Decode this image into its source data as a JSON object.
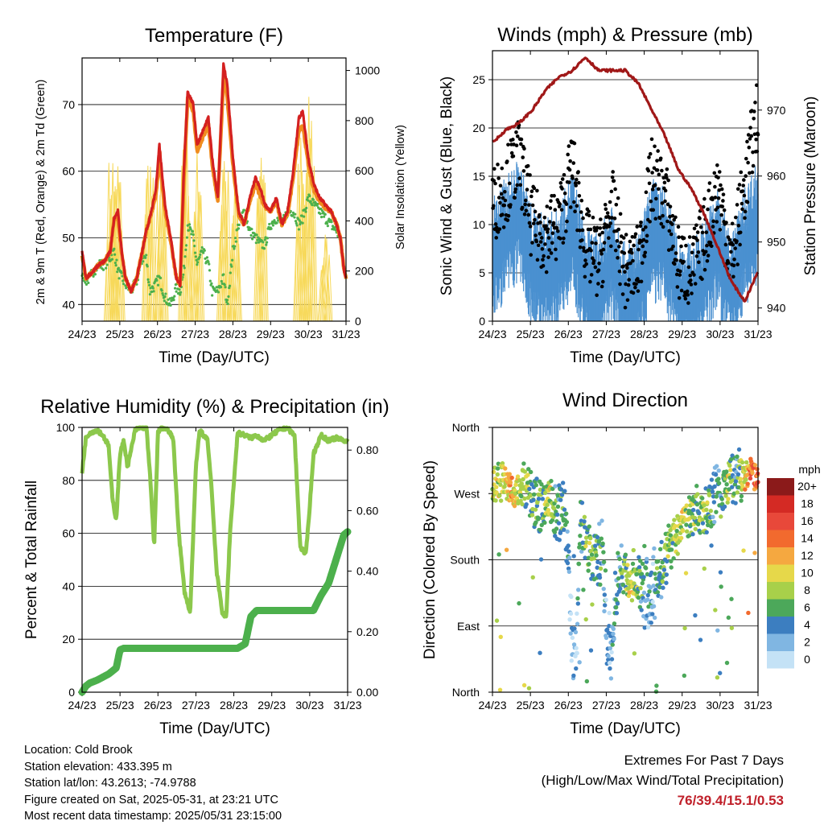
{
  "info": {
    "location": "Location: Cold Brook",
    "elevation": "Station elevation: 433.395 m",
    "latlon": "Station lat/lon: 43.2613; -74.9788",
    "created": "Figure created on Sat, 2025-05-31, at 23:21 UTC",
    "recent": "Most recent data timestamp: 2025/05/31 23:15:00"
  },
  "extremes": {
    "title": "Extremes For Past 7 Days",
    "subtitle": "(High/Low/Max Wind/Total Precipitation)",
    "values": "76/39.4/15.1/0.53"
  },
  "colors": {
    "temp_2m": "#d42020",
    "temp_9m": "#f08c1e",
    "dewpoint": "#4cb04c",
    "solar": "#f7d95a",
    "wind": "#4a90d0",
    "gust": "#000000",
    "pressure": "#a01818",
    "rh": "#8cc84c",
    "precip": "#4cb04c"
  },
  "chart_data": [
    {
      "type": "line",
      "title": "Temperature (F)",
      "xlabel": "Time (Day/UTC)",
      "ylabel": "2m & 9m T (Red, Orange) & 2m Td (Green)",
      "ylabel_right": "Solar Insolation (Yellow)",
      "x_ticks": [
        "24/23",
        "25/23",
        "26/23",
        "27/23",
        "28/23",
        "29/23",
        "30/23",
        "31/23"
      ],
      "ylim": [
        37.5,
        77
      ],
      "yticks": [
        40,
        50,
        60,
        70
      ],
      "ylim_right": [
        0,
        1050
      ],
      "yticks_right": [
        0,
        200,
        400,
        600,
        800,
        1000
      ],
      "grid": true,
      "x": [
        0,
        0.1,
        0.2,
        0.3,
        0.45,
        0.6,
        0.75,
        0.85,
        0.95,
        1.05,
        1.15,
        1.3,
        1.45,
        1.6,
        1.7,
        1.8,
        1.95,
        2.05,
        2.2,
        2.35,
        2.5,
        2.6,
        2.7,
        2.8,
        2.95,
        3.05,
        3.2,
        3.35,
        3.45,
        3.6,
        3.75,
        3.85,
        4.0,
        4.15,
        4.3,
        4.45,
        4.6,
        4.75,
        4.85,
        5.0,
        5.15,
        5.3,
        5.45,
        5.6,
        5.75,
        5.85,
        6.0,
        6.15,
        6.3,
        6.45,
        6.6,
        6.75,
        6.85,
        6.95,
        7.0
      ],
      "series": [
        {
          "name": "2m T",
          "values": [
            48,
            44,
            44.5,
            45,
            46,
            46.5,
            48,
            53,
            54,
            48,
            44,
            42,
            44,
            48,
            51,
            53,
            57,
            64,
            55,
            50,
            44,
            43,
            60,
            72,
            70,
            64,
            66,
            68,
            62,
            56,
            76,
            73,
            62,
            54,
            52,
            56,
            59,
            57,
            55,
            54,
            56,
            52,
            54,
            60,
            68,
            69,
            62,
            58,
            56,
            55,
            54,
            52,
            50,
            45,
            44
          ]
        },
        {
          "name": "9m T",
          "values": [
            47.5,
            44,
            44.5,
            45,
            46,
            46.5,
            48,
            53,
            53,
            47.5,
            44,
            42,
            44,
            48,
            51,
            53,
            56,
            62,
            54,
            49.5,
            44,
            43,
            59,
            71,
            69,
            63,
            65,
            67,
            61,
            55.5,
            74,
            71,
            61,
            53.5,
            52,
            55.5,
            58,
            56,
            54.5,
            54,
            55.5,
            52,
            53.5,
            59,
            66,
            67,
            61,
            57,
            55.5,
            54.5,
            54,
            52,
            50,
            45,
            44
          ]
        },
        {
          "name": "2m Td",
          "values": [
            45,
            43.5,
            44,
            45,
            46,
            46,
            47,
            48,
            45,
            44,
            43,
            42,
            43.5,
            47,
            47,
            42,
            43,
            44,
            41,
            40,
            42.5,
            42,
            45,
            52,
            50,
            46,
            48,
            46,
            42,
            42,
            44,
            40,
            48,
            52,
            54,
            51,
            50,
            49,
            49,
            52,
            53,
            52,
            54,
            54,
            52,
            53,
            56,
            55,
            54,
            53,
            52,
            51,
            50,
            45,
            44
          ]
        },
        {
          "name": "Solar",
          "axis": "right",
          "peaks": [
            [
              0.78,
              780
            ],
            [
              0.95,
              720
            ],
            [
              1.78,
              780
            ],
            [
              2.1,
              700
            ],
            [
              2.75,
              850
            ],
            [
              3.05,
              700
            ],
            [
              3.77,
              820
            ],
            [
              4.05,
              650
            ],
            [
              4.75,
              880
            ],
            [
              5.8,
              780
            ],
            [
              6.05,
              1000
            ],
            [
              6.45,
              380
            ]
          ]
        }
      ]
    },
    {
      "type": "scatter",
      "title": "Winds (mph) & Pressure (mb)",
      "xlabel": "Time (Day/UTC)",
      "ylabel": "Sonic Wind & Gust (Blue, Black)",
      "ylabel_right": "Station Pressure (Maroon)",
      "x_ticks": [
        "24/23",
        "25/23",
        "26/23",
        "27/23",
        "28/23",
        "29/23",
        "30/23",
        "31/23"
      ],
      "ylim": [
        0,
        28
      ],
      "yticks": [
        0,
        5,
        10,
        15,
        20,
        25
      ],
      "ylim_right": [
        938,
        979
      ],
      "yticks_right": [
        940,
        950,
        960,
        970
      ],
      "grid": true,
      "x": [
        0,
        0.35,
        0.7,
        1.05,
        1.4,
        1.75,
        2.1,
        2.45,
        2.8,
        3.15,
        3.5,
        3.85,
        4.2,
        4.55,
        4.9,
        5.25,
        5.6,
        5.95,
        6.3,
        6.65,
        7.0
      ],
      "series": [
        {
          "name": "Wind",
          "values": [
            8,
            10,
            12,
            7,
            6,
            7,
            11,
            5,
            4,
            8,
            3,
            4,
            10,
            9,
            4,
            3,
            6,
            9,
            4,
            9,
            12
          ]
        },
        {
          "name": "Gust",
          "values": [
            12,
            14,
            17,
            10,
            9,
            10,
            16,
            8,
            6,
            12,
            5,
            6,
            15,
            13,
            6,
            5,
            9,
            14,
            6,
            14,
            22
          ]
        },
        {
          "name": "Pressure",
          "axis": "right",
          "values": [
            965,
            967,
            968,
            970,
            973,
            975,
            976,
            978,
            976,
            976,
            976,
            974,
            970,
            966,
            961,
            958,
            954,
            949,
            944,
            941,
            945.5
          ]
        }
      ]
    },
    {
      "type": "line",
      "title": "Relative Humidity (%) & Precipitation (in)",
      "xlabel": "Time (Day/UTC)",
      "ylabel": "Percent & Total Rainfall",
      "x_ticks": [
        "24/23",
        "25/23",
        "26/23",
        "27/23",
        "28/23",
        "29/23",
        "30/23",
        "31/23"
      ],
      "ylim": [
        0,
        100
      ],
      "yticks": [
        0,
        20,
        40,
        60,
        80,
        100
      ],
      "ylim_right": [
        0,
        0.875
      ],
      "yticks_right": [
        0.0,
        0.2,
        0.4,
        0.6,
        0.8
      ],
      "yticklabels_right": [
        "0.00",
        "0.20",
        "0.40",
        "0.60",
        "0.80"
      ],
      "grid": true,
      "x": [
        0,
        0.1,
        0.2,
        0.4,
        0.55,
        0.7,
        0.8,
        0.9,
        1.0,
        1.1,
        1.2,
        1.3,
        1.4,
        1.55,
        1.7,
        1.8,
        1.9,
        2.0,
        2.1,
        2.25,
        2.4,
        2.55,
        2.7,
        2.85,
        3.0,
        3.1,
        3.2,
        3.3,
        3.4,
        3.55,
        3.7,
        3.8,
        3.9,
        4.1,
        4.3,
        4.45,
        4.6,
        4.8,
        5.0,
        5.2,
        5.4,
        5.6,
        5.75,
        5.9,
        6.0,
        6.1,
        6.3,
        6.5,
        6.7,
        6.9,
        7.0
      ],
      "series": [
        {
          "name": "RH",
          "values": [
            83,
            96,
            98,
            99,
            97,
            93,
            73,
            65,
            90,
            95,
            85,
            92,
            99,
            100,
            100,
            80,
            55,
            98,
            100,
            99,
            96,
            60,
            38,
            30,
            85,
            99,
            97,
            96,
            80,
            45,
            30,
            28,
            60,
            98,
            97,
            96,
            97,
            95,
            97,
            99,
            100,
            97,
            55,
            52,
            70,
            90,
            97,
            95,
            96,
            95,
            95
          ]
        },
        {
          "name": "Precipitation",
          "axis": "right",
          "values": [
            0.0,
            0.02,
            0.03,
            0.04,
            0.05,
            0.06,
            0.07,
            0.08,
            0.14,
            0.145,
            0.145,
            0.145,
            0.145,
            0.145,
            0.145,
            0.145,
            0.145,
            0.145,
            0.145,
            0.145,
            0.145,
            0.145,
            0.145,
            0.145,
            0.145,
            0.145,
            0.145,
            0.145,
            0.145,
            0.145,
            0.145,
            0.145,
            0.145,
            0.145,
            0.16,
            0.25,
            0.27,
            0.27,
            0.27,
            0.27,
            0.27,
            0.27,
            0.27,
            0.27,
            0.27,
            0.27,
            0.32,
            0.36,
            0.44,
            0.52,
            0.53
          ]
        }
      ]
    },
    {
      "type": "scatter",
      "title": "Wind Direction",
      "xlabel": "Time (Day/UTC)",
      "ylabel": "Direction (Colored By Speed)",
      "x_ticks": [
        "24/23",
        "25/23",
        "26/23",
        "27/23",
        "28/23",
        "29/23",
        "30/23",
        "31/23"
      ],
      "y_categories": [
        "North",
        "East",
        "South",
        "West",
        "North"
      ],
      "ylim": [
        0,
        360
      ],
      "grid": true,
      "legend": {
        "title": "mph",
        "placement": "right",
        "labels": [
          "20+",
          "18",
          "16",
          "14",
          "12",
          "10",
          "8",
          "6",
          "4",
          "2",
          "0"
        ],
        "colors": [
          "#8b1a1a",
          "#d42a24",
          "#e8483a",
          "#f26a2e",
          "#f5a840",
          "#e6d84a",
          "#a8d04a",
          "#4ca85a",
          "#3c7ec0",
          "#80b6e2",
          "#c4e2f6"
        ]
      },
      "series": [
        {
          "name": "Direction",
          "x": [
            0.1,
            0.3,
            0.5,
            0.7,
            0.9,
            1.1,
            1.3,
            1.5,
            1.7,
            1.9,
            2.0,
            2.1,
            2.2,
            2.3,
            2.5,
            2.7,
            2.9,
            3.0,
            3.1,
            3.3,
            3.5,
            3.6,
            3.8,
            4.0,
            4.2,
            4.4,
            4.6,
            4.8,
            5.0,
            5.2,
            5.4,
            5.6,
            5.8,
            6.0,
            6.2,
            6.4,
            6.6,
            6.8,
            6.9
          ],
          "values": [
            280,
            290,
            275,
            270,
            285,
            260,
            250,
            265,
            240,
            250,
            170,
            60,
            40,
            230,
            200,
            180,
            190,
            80,
            50,
            160,
            160,
            150,
            150,
            140,
            135,
            160,
            190,
            210,
            230,
            240,
            250,
            240,
            260,
            265,
            280,
            300,
            290,
            305,
            295
          ],
          "speed": [
            8,
            10,
            12,
            9,
            7,
            6,
            5,
            9,
            4,
            6,
            3,
            2,
            2,
            5,
            7,
            6,
            5,
            2,
            3,
            4,
            6,
            10,
            7,
            4,
            3,
            5,
            7,
            8,
            9,
            7,
            6,
            8,
            5,
            4,
            9,
            4,
            10,
            13,
            14
          ]
        }
      ]
    }
  ]
}
